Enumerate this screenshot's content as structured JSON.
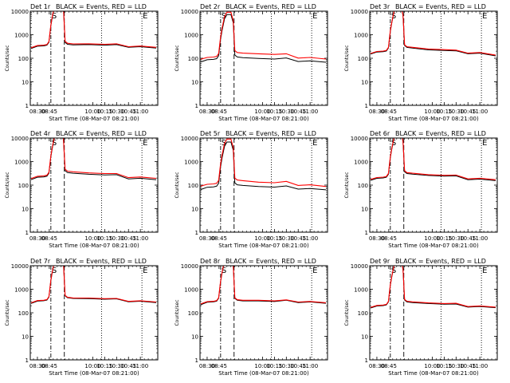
{
  "figure": {
    "legend_text": "BLACK = Events, RED = LLD"
  },
  "shared": {
    "ylabel": "Counts/sec",
    "xlabel": "Start Time (08-Mar-07 08:21:00)",
    "x_ticks": [
      "08:30",
      "08:45",
      "10:00",
      "10:15",
      "10:30",
      "10:45",
      "11:00"
    ],
    "y_ticks": [
      "1",
      "10",
      "100",
      "1000",
      "10000"
    ],
    "markers": [
      "S",
      "E"
    ],
    "colors": {
      "events": "#000000",
      "lld": "#ff0000"
    }
  },
  "chart_data": [
    {
      "type": "line",
      "title_prefix": "Det 1r",
      "x": [
        "08:30",
        "08:45",
        "10:00",
        "10:15",
        "10:30",
        "10:45",
        "11:00"
      ],
      "ylim": [
        1,
        10000
      ],
      "yscale": "log",
      "series": [
        {
          "values": [
            260,
            300,
            380,
            370,
            370,
            300,
            280
          ]
        },
        {
          "values": [
            280,
            320,
            420,
            400,
            400,
            320,
            300
          ]
        }
      ]
    },
    {
      "type": "line",
      "title_prefix": "Det 2r",
      "x": [
        "08:30",
        "08:45",
        "10:00",
        "10:15",
        "10:30",
        "10:45",
        "11:00"
      ],
      "ylim": [
        1,
        10000
      ],
      "yscale": "log",
      "series": [
        {
          "values": [
            70,
            80,
            110,
            95,
            100,
            75,
            70
          ]
        },
        {
          "values": [
            90,
            100,
            170,
            150,
            150,
            105,
            95
          ]
        }
      ]
    },
    {
      "type": "line",
      "title_prefix": "Det 3r",
      "x": [
        "08:30",
        "08:45",
        "10:00",
        "10:15",
        "10:30",
        "10:45",
        "11:00"
      ],
      "ylim": [
        1,
        10000
      ],
      "yscale": "log",
      "series": [
        {
          "values": [
            150,
            170,
            280,
            220,
            200,
            160,
            130
          ]
        },
        {
          "values": [
            160,
            180,
            300,
            240,
            215,
            170,
            140
          ]
        }
      ]
    },
    {
      "type": "line",
      "title_prefix": "Det 4r",
      "x": [
        "08:30",
        "08:45",
        "10:00",
        "10:15",
        "10:30",
        "10:45",
        "11:00"
      ],
      "ylim": [
        1,
        10000
      ],
      "yscale": "log",
      "series": [
        {
          "values": [
            170,
            200,
            330,
            280,
            270,
            190,
            175
          ]
        },
        {
          "values": [
            190,
            220,
            380,
            320,
            300,
            215,
            200
          ]
        }
      ]
    },
    {
      "type": "line",
      "title_prefix": "Det 5r",
      "x": [
        "08:30",
        "08:45",
        "10:00",
        "10:15",
        "10:30",
        "10:45",
        "11:00"
      ],
      "ylim": [
        1,
        10000
      ],
      "yscale": "log",
      "series": [
        {
          "values": [
            65,
            75,
            100,
            85,
            90,
            70,
            65
          ]
        },
        {
          "values": [
            90,
            100,
            160,
            130,
            140,
            100,
            90
          ]
        }
      ]
    },
    {
      "type": "line",
      "title_prefix": "Det 6r",
      "x": [
        "08:30",
        "08:45",
        "10:00",
        "10:15",
        "10:30",
        "10:45",
        "11:00"
      ],
      "ylim": [
        1,
        10000
      ],
      "yscale": "log",
      "series": [
        {
          "values": [
            160,
            180,
            300,
            250,
            240,
            175,
            160
          ]
        },
        {
          "values": [
            175,
            195,
            330,
            270,
            260,
            190,
            175
          ]
        }
      ]
    },
    {
      "type": "line",
      "title_prefix": "Det 7r",
      "x": [
        "08:30",
        "08:45",
        "10:00",
        "10:15",
        "10:30",
        "10:45",
        "11:00"
      ],
      "ylim": [
        1,
        10000
      ],
      "yscale": "log",
      "series": [
        {
          "values": [
            250,
            290,
            420,
            390,
            380,
            300,
            280
          ]
        },
        {
          "values": [
            265,
            305,
            440,
            410,
            395,
            315,
            295
          ]
        }
      ]
    },
    {
      "type": "line",
      "title_prefix": "Det 8r",
      "x": [
        "08:30",
        "08:45",
        "10:00",
        "10:15",
        "10:30",
        "10:45",
        "11:00"
      ],
      "ylim": [
        1,
        10000
      ],
      "yscale": "log",
      "series": [
        {
          "values": [
            220,
            260,
            330,
            310,
            330,
            280,
            260
          ]
        },
        {
          "values": [
            240,
            275,
            350,
            330,
            345,
            295,
            275
          ]
        }
      ]
    },
    {
      "type": "line",
      "title_prefix": "Det 9r",
      "x": [
        "08:30",
        "08:45",
        "10:00",
        "10:15",
        "10:30",
        "10:45",
        "11:00"
      ],
      "ylim": [
        1,
        10000
      ],
      "yscale": "log",
      "series": [
        {
          "values": [
            160,
            180,
            280,
            240,
            230,
            180,
            170
          ]
        },
        {
          "values": [
            170,
            190,
            300,
            255,
            245,
            190,
            180
          ]
        }
      ]
    }
  ]
}
